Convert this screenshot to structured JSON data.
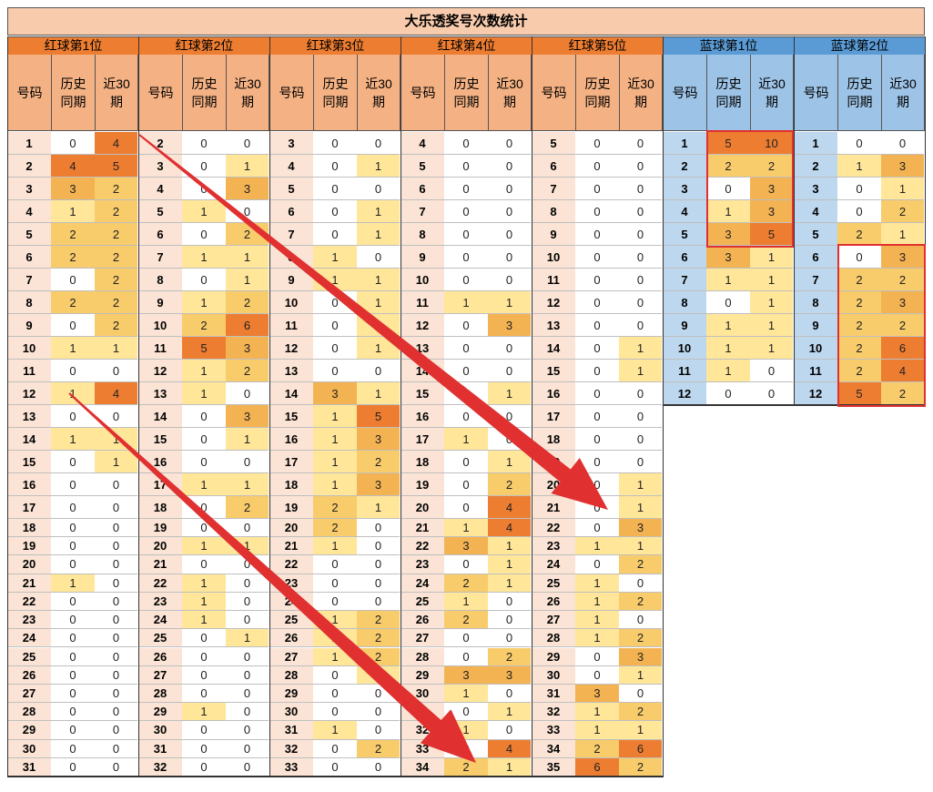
{
  "title": "大乐透奖号次数统计",
  "col_headers": {
    "code": "号码",
    "hist": "历史\n同期",
    "recent": "近30\n期"
  },
  "groups": [
    {
      "name": "红球第1位",
      "type": "red",
      "rows": [
        [
          1,
          0,
          4
        ],
        [
          2,
          4,
          5
        ],
        [
          3,
          3,
          2
        ],
        [
          4,
          1,
          2
        ],
        [
          5,
          2,
          2
        ],
        [
          6,
          2,
          2
        ],
        [
          7,
          0,
          2
        ],
        [
          8,
          2,
          2
        ],
        [
          9,
          0,
          2
        ],
        [
          10,
          1,
          1
        ],
        [
          11,
          0,
          0
        ],
        [
          12,
          1,
          4
        ],
        [
          13,
          0,
          0
        ],
        [
          14,
          1,
          1
        ],
        [
          15,
          0,
          1
        ],
        [
          16,
          0,
          0
        ],
        [
          17,
          0,
          0
        ],
        [
          18,
          0,
          0
        ],
        [
          19,
          0,
          0
        ],
        [
          20,
          0,
          0
        ],
        [
          21,
          1,
          0
        ],
        [
          22,
          0,
          0
        ],
        [
          23,
          0,
          0
        ],
        [
          24,
          0,
          0
        ],
        [
          25,
          0,
          0
        ],
        [
          26,
          0,
          0
        ],
        [
          27,
          0,
          0
        ],
        [
          28,
          0,
          0
        ],
        [
          29,
          0,
          0
        ],
        [
          30,
          0,
          0
        ],
        [
          31,
          0,
          0
        ]
      ]
    },
    {
      "name": "红球第2位",
      "type": "red",
      "rows": [
        [
          2,
          0,
          0
        ],
        [
          3,
          0,
          1
        ],
        [
          4,
          0,
          3
        ],
        [
          5,
          1,
          0
        ],
        [
          6,
          0,
          2
        ],
        [
          7,
          1,
          1
        ],
        [
          8,
          0,
          1
        ],
        [
          9,
          1,
          2
        ],
        [
          10,
          2,
          6
        ],
        [
          11,
          5,
          3
        ],
        [
          12,
          1,
          2
        ],
        [
          13,
          1,
          0
        ],
        [
          14,
          0,
          3
        ],
        [
          15,
          0,
          1
        ],
        [
          16,
          0,
          0
        ],
        [
          17,
          1,
          1
        ],
        [
          18,
          0,
          2
        ],
        [
          19,
          0,
          0
        ],
        [
          20,
          1,
          1
        ],
        [
          21,
          0,
          0
        ],
        [
          22,
          1,
          0
        ],
        [
          23,
          1,
          0
        ],
        [
          24,
          1,
          0
        ],
        [
          25,
          0,
          1
        ],
        [
          26,
          0,
          0
        ],
        [
          27,
          0,
          0
        ],
        [
          28,
          0,
          0
        ],
        [
          29,
          1,
          0
        ],
        [
          30,
          0,
          0
        ],
        [
          31,
          0,
          0
        ],
        [
          32,
          0,
          0
        ]
      ]
    },
    {
      "name": "红球第3位",
      "type": "red",
      "rows": [
        [
          3,
          0,
          0
        ],
        [
          4,
          0,
          1
        ],
        [
          5,
          0,
          0
        ],
        [
          6,
          0,
          1
        ],
        [
          7,
          0,
          1
        ],
        [
          8,
          1,
          0
        ],
        [
          9,
          1,
          1
        ],
        [
          10,
          0,
          1
        ],
        [
          11,
          0,
          1
        ],
        [
          12,
          0,
          1
        ],
        [
          13,
          0,
          0
        ],
        [
          14,
          3,
          1
        ],
        [
          15,
          1,
          5
        ],
        [
          16,
          1,
          3
        ],
        [
          17,
          1,
          2
        ],
        [
          18,
          1,
          3
        ],
        [
          19,
          2,
          1
        ],
        [
          20,
          2,
          0
        ],
        [
          21,
          1,
          0
        ],
        [
          22,
          0,
          0
        ],
        [
          23,
          0,
          0
        ],
        [
          24,
          0,
          0
        ],
        [
          25,
          1,
          2
        ],
        [
          26,
          1,
          2
        ],
        [
          27,
          1,
          2
        ],
        [
          28,
          0,
          1
        ],
        [
          29,
          0,
          0
        ],
        [
          30,
          0,
          0
        ],
        [
          31,
          1,
          0
        ],
        [
          32,
          0,
          2
        ],
        [
          33,
          0,
          0
        ]
      ]
    },
    {
      "name": "红球第4位",
      "type": "red",
      "rows": [
        [
          4,
          0,
          0
        ],
        [
          5,
          0,
          0
        ],
        [
          6,
          0,
          0
        ],
        [
          7,
          0,
          0
        ],
        [
          8,
          0,
          0
        ],
        [
          9,
          0,
          0
        ],
        [
          10,
          0,
          0
        ],
        [
          11,
          1,
          1
        ],
        [
          12,
          0,
          3
        ],
        [
          13,
          0,
          0
        ],
        [
          14,
          0,
          0
        ],
        [
          15,
          0,
          1
        ],
        [
          16,
          0,
          0
        ],
        [
          17,
          1,
          0
        ],
        [
          18,
          0,
          1
        ],
        [
          19,
          0,
          2
        ],
        [
          20,
          0,
          4
        ],
        [
          21,
          1,
          4
        ],
        [
          22,
          3,
          1
        ],
        [
          23,
          0,
          1
        ],
        [
          24,
          2,
          1
        ],
        [
          25,
          1,
          0
        ],
        [
          26,
          2,
          0
        ],
        [
          27,
          0,
          0
        ],
        [
          28,
          0,
          2
        ],
        [
          29,
          3,
          3
        ],
        [
          30,
          1,
          0
        ],
        [
          31,
          0,
          1
        ],
        [
          32,
          1,
          0
        ],
        [
          33,
          0,
          4
        ],
        [
          34,
          2,
          1
        ]
      ]
    },
    {
      "name": "红球第5位",
      "type": "red",
      "rows": [
        [
          5,
          0,
          0
        ],
        [
          6,
          0,
          0
        ],
        [
          7,
          0,
          0
        ],
        [
          8,
          0,
          0
        ],
        [
          9,
          0,
          0
        ],
        [
          10,
          0,
          0
        ],
        [
          11,
          0,
          0
        ],
        [
          12,
          0,
          0
        ],
        [
          13,
          0,
          0
        ],
        [
          14,
          0,
          1
        ],
        [
          15,
          0,
          1
        ],
        [
          16,
          0,
          0
        ],
        [
          17,
          0,
          0
        ],
        [
          18,
          0,
          0
        ],
        [
          19,
          0,
          0
        ],
        [
          20,
          0,
          1
        ],
        [
          21,
          0,
          1
        ],
        [
          22,
          0,
          3
        ],
        [
          23,
          1,
          1
        ],
        [
          24,
          0,
          2
        ],
        [
          25,
          1,
          0
        ],
        [
          26,
          1,
          2
        ],
        [
          27,
          1,
          0
        ],
        [
          28,
          1,
          2
        ],
        [
          29,
          0,
          3
        ],
        [
          30,
          0,
          1
        ],
        [
          31,
          3,
          0
        ],
        [
          32,
          1,
          2
        ],
        [
          33,
          1,
          1
        ],
        [
          34,
          2,
          6
        ],
        [
          35,
          6,
          2
        ]
      ]
    },
    {
      "name": "蓝球第1位",
      "type": "blue",
      "rows": [
        [
          1,
          5,
          10
        ],
        [
          2,
          2,
          2
        ],
        [
          3,
          0,
          3
        ],
        [
          4,
          1,
          3
        ],
        [
          5,
          3,
          5
        ],
        [
          6,
          3,
          1
        ],
        [
          7,
          1,
          1
        ],
        [
          8,
          0,
          1
        ],
        [
          9,
          1,
          1
        ],
        [
          10,
          1,
          1
        ],
        [
          11,
          1,
          0
        ],
        [
          12,
          0,
          0
        ]
      ]
    },
    {
      "name": "蓝球第2位",
      "type": "blue",
      "rows": [
        [
          1,
          0,
          0
        ],
        [
          2,
          1,
          3
        ],
        [
          3,
          0,
          1
        ],
        [
          4,
          0,
          2
        ],
        [
          5,
          2,
          1
        ],
        [
          6,
          0,
          3
        ],
        [
          7,
          2,
          2
        ],
        [
          8,
          2,
          3
        ],
        [
          9,
          2,
          2
        ],
        [
          10,
          2,
          6
        ],
        [
          11,
          2,
          4
        ],
        [
          12,
          5,
          2
        ]
      ]
    }
  ],
  "colors": {
    "red_header": "#ed7d31",
    "red_subheader": "#f4b183",
    "red_number_cell": "#fbe4d5",
    "blue_header": "#5b9bd5",
    "blue_subheader": "#9dc3e6",
    "blue_number_cell": "#bdd7ee",
    "title_bg": "#f8cbad",
    "heat_1": "#ffe699",
    "heat_2": "#f8cb6b",
    "heat_3": "#f4b352",
    "heat_4_plus": "#ed7d31",
    "annotation": "#e03030"
  }
}
